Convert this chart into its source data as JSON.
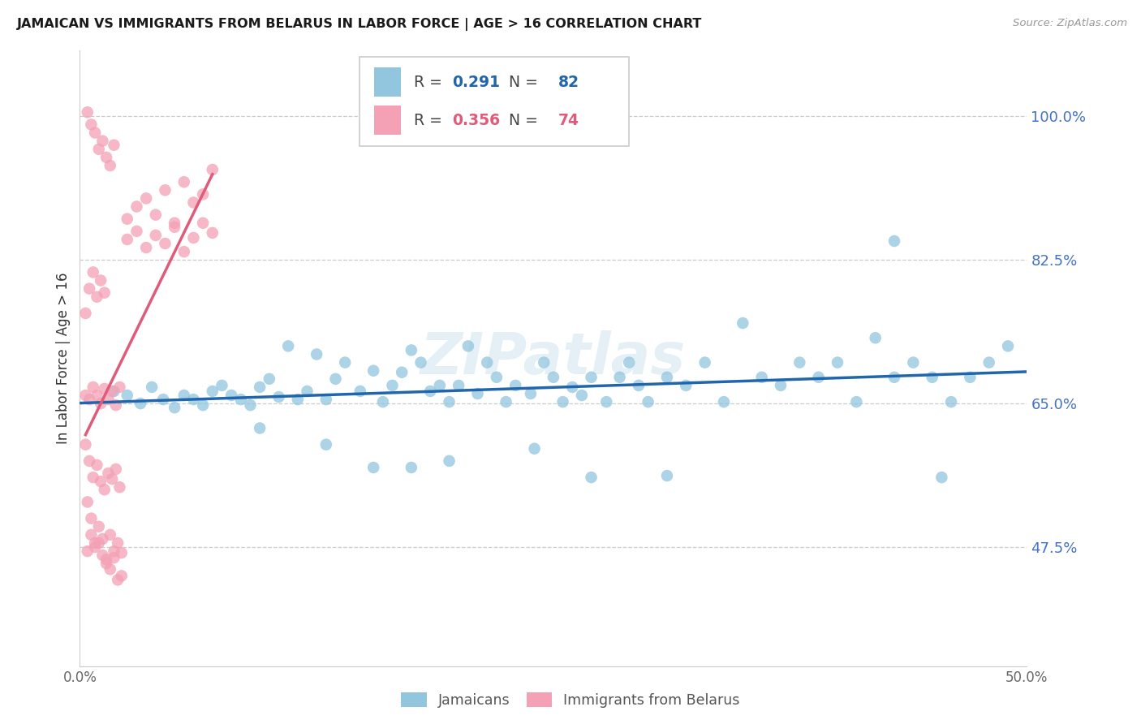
{
  "title": "JAMAICAN VS IMMIGRANTS FROM BELARUS IN LABOR FORCE | AGE > 16 CORRELATION CHART",
  "source": "Source: ZipAtlas.com",
  "ylabel": "In Labor Force | Age > 16",
  "xlim": [
    0.0,
    0.5
  ],
  "ylim": [
    0.33,
    1.08
  ],
  "yticks": [
    0.475,
    0.65,
    0.825,
    1.0
  ],
  "ytick_labels": [
    "47.5%",
    "65.0%",
    "82.5%",
    "100.0%"
  ],
  "xticks": [
    0.0,
    0.05,
    0.1,
    0.15,
    0.2,
    0.25,
    0.3,
    0.35,
    0.4,
    0.45,
    0.5
  ],
  "xtick_labels": [
    "0.0%",
    "",
    "",
    "",
    "",
    "",
    "",
    "",
    "",
    "",
    "50.0%"
  ],
  "blue_R": "0.291",
  "blue_N": "82",
  "pink_R": "0.356",
  "pink_N": "74",
  "blue_color": "#92c5de",
  "pink_color": "#f4a0b5",
  "blue_line_color": "#2166ac",
  "pink_line_color": "#e05a7a",
  "watermark": "ZIPatlas",
  "legend_label_blue": "Jamaicans",
  "legend_label_pink": "Immigrants from Belarus",
  "blue_scatter_x": [
    0.018,
    0.025,
    0.032,
    0.038,
    0.044,
    0.05,
    0.055,
    0.06,
    0.065,
    0.07,
    0.075,
    0.08,
    0.085,
    0.09,
    0.095,
    0.1,
    0.105,
    0.11,
    0.115,
    0.12,
    0.125,
    0.13,
    0.135,
    0.14,
    0.148,
    0.155,
    0.16,
    0.165,
    0.17,
    0.175,
    0.18,
    0.185,
    0.19,
    0.195,
    0.2,
    0.205,
    0.21,
    0.215,
    0.22,
    0.225,
    0.23,
    0.238,
    0.245,
    0.25,
    0.255,
    0.26,
    0.265,
    0.27,
    0.278,
    0.285,
    0.29,
    0.295,
    0.3,
    0.31,
    0.32,
    0.33,
    0.34,
    0.35,
    0.36,
    0.37,
    0.38,
    0.39,
    0.4,
    0.41,
    0.42,
    0.43,
    0.44,
    0.45,
    0.46,
    0.47,
    0.48,
    0.49,
    0.155,
    0.13,
    0.24,
    0.195,
    0.175,
    0.095,
    0.27,
    0.31,
    0.43,
    0.455
  ],
  "blue_scatter_y": [
    0.665,
    0.66,
    0.65,
    0.67,
    0.655,
    0.645,
    0.66,
    0.655,
    0.648,
    0.665,
    0.672,
    0.66,
    0.655,
    0.648,
    0.67,
    0.68,
    0.658,
    0.72,
    0.655,
    0.665,
    0.71,
    0.655,
    0.68,
    0.7,
    0.665,
    0.69,
    0.652,
    0.672,
    0.688,
    0.715,
    0.7,
    0.665,
    0.672,
    0.652,
    0.672,
    0.72,
    0.662,
    0.7,
    0.682,
    0.652,
    0.672,
    0.662,
    0.7,
    0.682,
    0.652,
    0.67,
    0.66,
    0.682,
    0.652,
    0.682,
    0.7,
    0.672,
    0.652,
    0.682,
    0.672,
    0.7,
    0.652,
    0.748,
    0.682,
    0.672,
    0.7,
    0.682,
    0.7,
    0.652,
    0.73,
    0.682,
    0.7,
    0.682,
    0.652,
    0.682,
    0.7,
    0.72,
    0.572,
    0.6,
    0.595,
    0.58,
    0.572,
    0.62,
    0.56,
    0.562,
    0.848,
    0.56
  ],
  "pink_scatter_x": [
    0.003,
    0.005,
    0.007,
    0.009,
    0.011,
    0.013,
    0.015,
    0.017,
    0.019,
    0.021,
    0.003,
    0.005,
    0.007,
    0.009,
    0.011,
    0.013,
    0.015,
    0.017,
    0.019,
    0.021,
    0.004,
    0.006,
    0.008,
    0.01,
    0.012,
    0.014,
    0.016,
    0.018,
    0.02,
    0.022,
    0.004,
    0.006,
    0.008,
    0.01,
    0.012,
    0.014,
    0.016,
    0.018,
    0.02,
    0.022,
    0.003,
    0.005,
    0.007,
    0.009,
    0.011,
    0.013,
    0.025,
    0.03,
    0.035,
    0.04,
    0.045,
    0.05,
    0.055,
    0.06,
    0.065,
    0.07,
    0.025,
    0.03,
    0.035,
    0.04,
    0.045,
    0.05,
    0.055,
    0.06,
    0.065,
    0.07,
    0.004,
    0.006,
    0.008,
    0.01,
    0.012,
    0.014,
    0.016,
    0.018
  ],
  "pink_scatter_y": [
    0.66,
    0.655,
    0.67,
    0.66,
    0.65,
    0.668,
    0.655,
    0.665,
    0.648,
    0.67,
    0.6,
    0.58,
    0.56,
    0.575,
    0.555,
    0.545,
    0.565,
    0.558,
    0.57,
    0.548,
    0.53,
    0.51,
    0.48,
    0.5,
    0.485,
    0.46,
    0.448,
    0.462,
    0.435,
    0.44,
    0.47,
    0.49,
    0.475,
    0.48,
    0.465,
    0.455,
    0.49,
    0.47,
    0.48,
    0.468,
    0.76,
    0.79,
    0.81,
    0.78,
    0.8,
    0.785,
    0.875,
    0.89,
    0.9,
    0.88,
    0.91,
    0.87,
    0.92,
    0.895,
    0.905,
    0.935,
    0.85,
    0.86,
    0.84,
    0.855,
    0.845,
    0.865,
    0.835,
    0.852,
    0.87,
    0.858,
    1.005,
    0.99,
    0.98,
    0.96,
    0.97,
    0.95,
    0.94,
    0.965
  ]
}
